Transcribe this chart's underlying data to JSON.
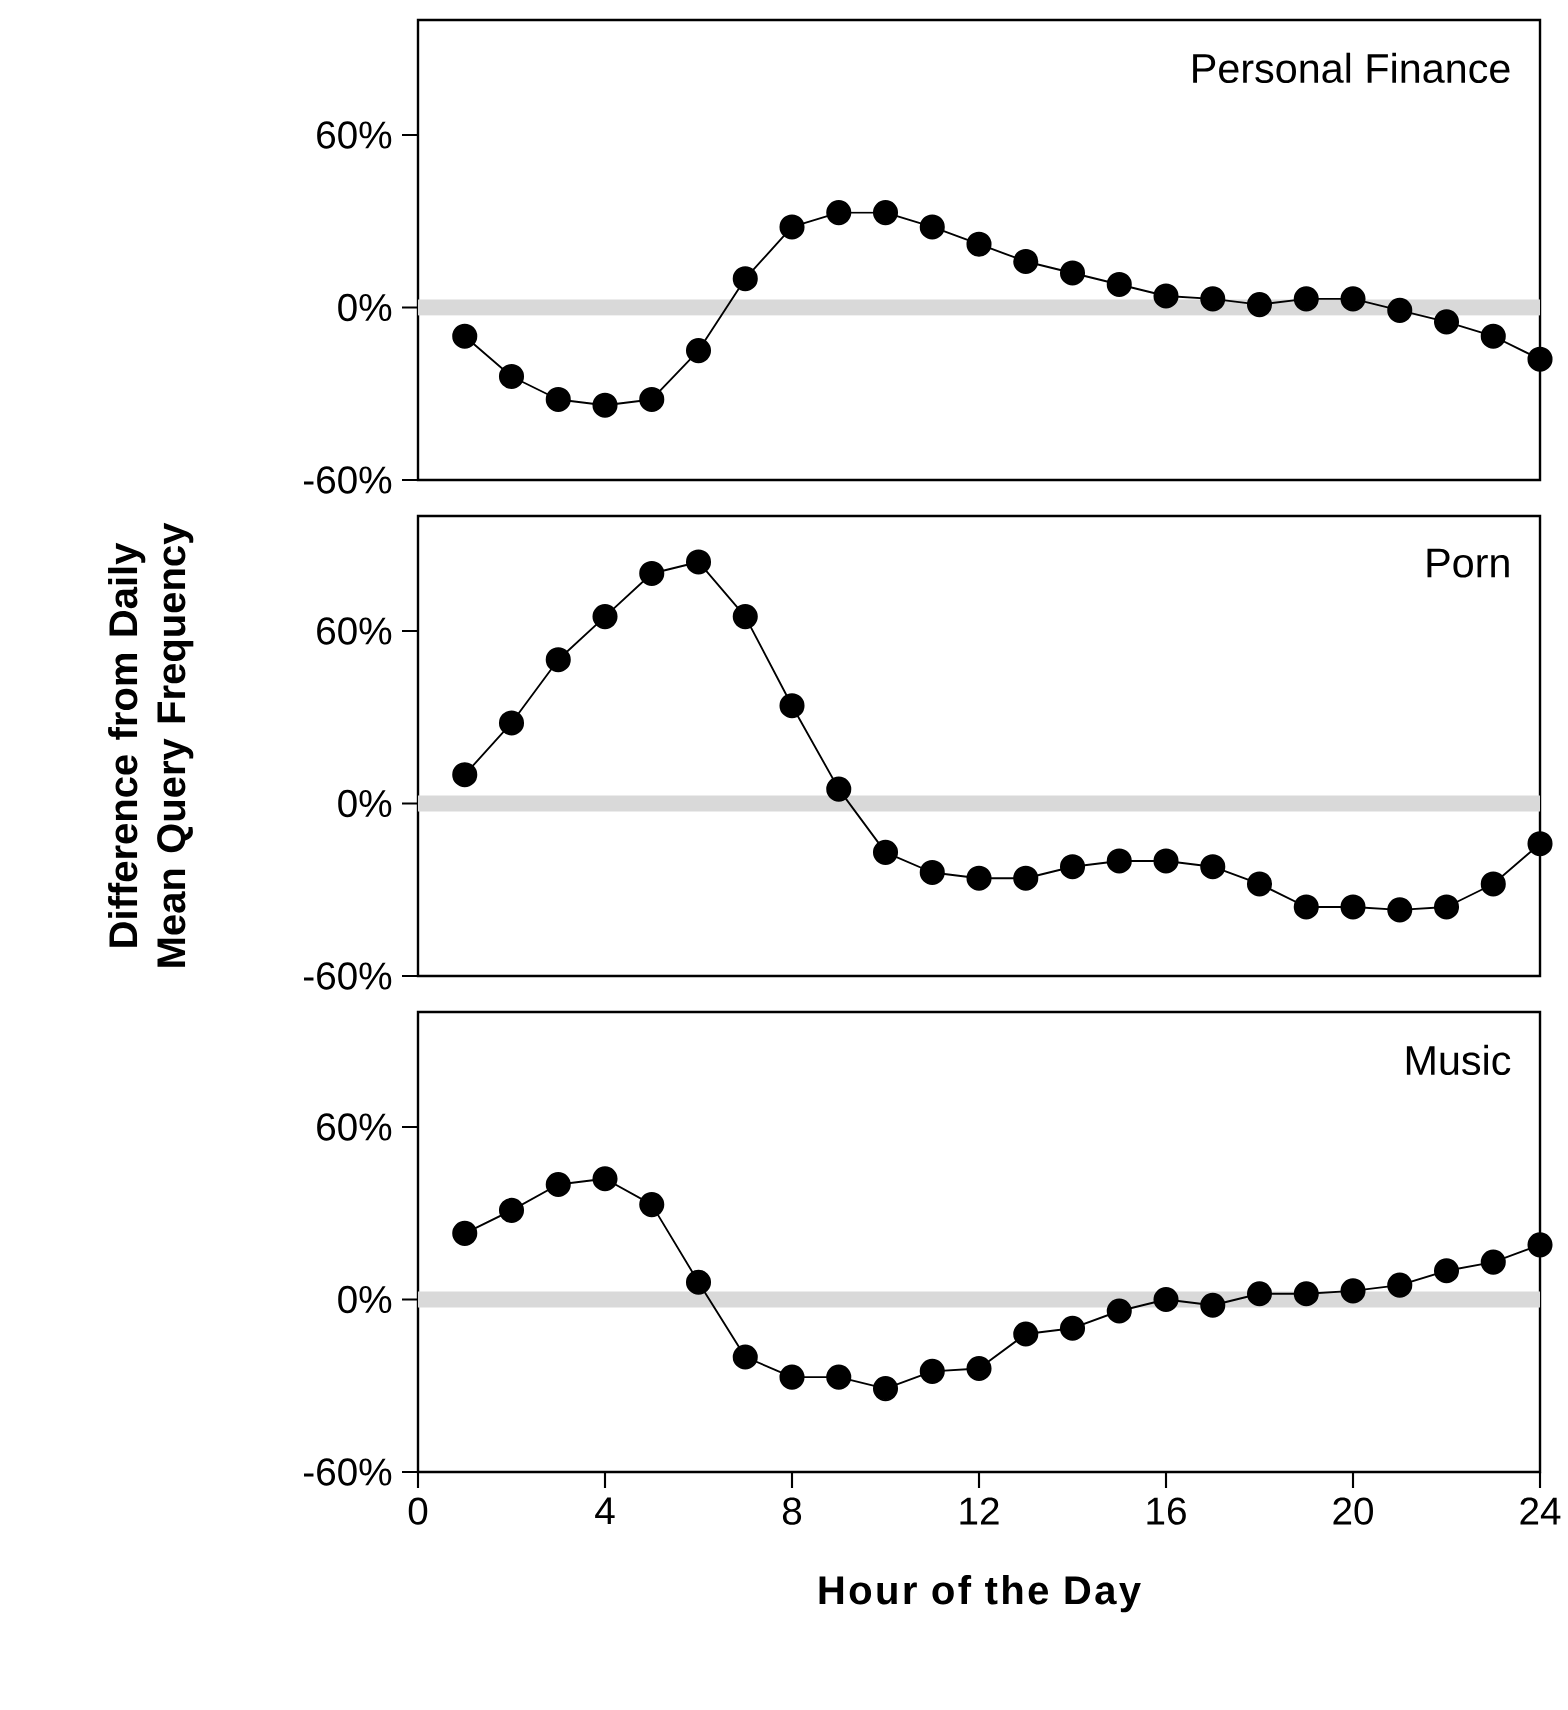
{
  "chart_data": [
    {
      "type": "line",
      "title": "Personal Finance",
      "x": [
        1,
        2,
        3,
        4,
        5,
        6,
        7,
        8,
        9,
        10,
        11,
        12,
        13,
        14,
        15,
        16,
        17,
        18,
        19,
        20,
        21,
        22,
        23,
        24
      ],
      "values": [
        -10,
        -24,
        -32,
        -34,
        -32,
        -15,
        10,
        28,
        33,
        33,
        28,
        22,
        16,
        12,
        8,
        4,
        3,
        1,
        3,
        3,
        -1,
        -5,
        -10,
        -18
      ],
      "color": "#000000",
      "marker": "circle",
      "xlim": [
        0,
        24
      ],
      "ylim": [
        -60,
        100
      ],
      "yticks": [
        {
          "value": -60,
          "label": "-60%"
        },
        {
          "value": 0,
          "label": "0%"
        },
        {
          "value": 60,
          "label": "60%"
        }
      ],
      "ref_lines": [
        {
          "axis": "y",
          "value": 0,
          "color": "#d9d9d9"
        }
      ],
      "tick_labels": "y"
    },
    {
      "type": "line",
      "title": "Porn",
      "ylabel": "Difference from Daily Mean Query Frequency",
      "x": [
        1,
        2,
        3,
        4,
        5,
        6,
        7,
        8,
        9,
        10,
        11,
        12,
        13,
        14,
        15,
        16,
        17,
        18,
        19,
        20,
        21,
        22,
        23,
        24
      ],
      "values": [
        10,
        28,
        50,
        65,
        80,
        84,
        65,
        34,
        5,
        -17,
        -24,
        -26,
        -26,
        -22,
        -20,
        -20,
        -22,
        -28,
        -36,
        -36,
        -37,
        -36,
        -28,
        -14
      ],
      "color": "#000000",
      "marker": "circle",
      "xlim": [
        0,
        24
      ],
      "ylim": [
        -60,
        100
      ],
      "yticks": [
        {
          "value": -60,
          "label": "-60%"
        },
        {
          "value": 0,
          "label": "0%"
        },
        {
          "value": 60,
          "label": "60%"
        }
      ],
      "ref_lines": [
        {
          "axis": "y",
          "value": 0,
          "color": "#d9d9d9"
        }
      ],
      "tick_labels": "y"
    },
    {
      "type": "line",
      "title": "Music",
      "xlabel": "Hour of the Day",
      "x": [
        1,
        2,
        3,
        4,
        5,
        6,
        7,
        8,
        9,
        10,
        11,
        12,
        13,
        14,
        15,
        16,
        17,
        18,
        19,
        20,
        21,
        22,
        23,
        24
      ],
      "values": [
        23,
        31,
        40,
        42,
        33,
        6,
        -20,
        -27,
        -27,
        -31,
        -25,
        -24,
        -12,
        -10,
        -4,
        0,
        -2,
        2,
        2,
        3,
        5,
        10,
        13,
        19
      ],
      "color": "#000000",
      "marker": "circle",
      "xlim": [
        0,
        24
      ],
      "xticks": [
        0,
        4,
        8,
        12,
        16,
        20,
        24
      ],
      "ylim": [
        -60,
        100
      ],
      "yticks": [
        {
          "value": -60,
          "label": "-60%"
        },
        {
          "value": 0,
          "label": "0%"
        },
        {
          "value": 60,
          "label": "60%"
        }
      ],
      "ref_lines": [
        {
          "axis": "y",
          "value": 0,
          "color": "#d9d9d9"
        }
      ]
    }
  ]
}
